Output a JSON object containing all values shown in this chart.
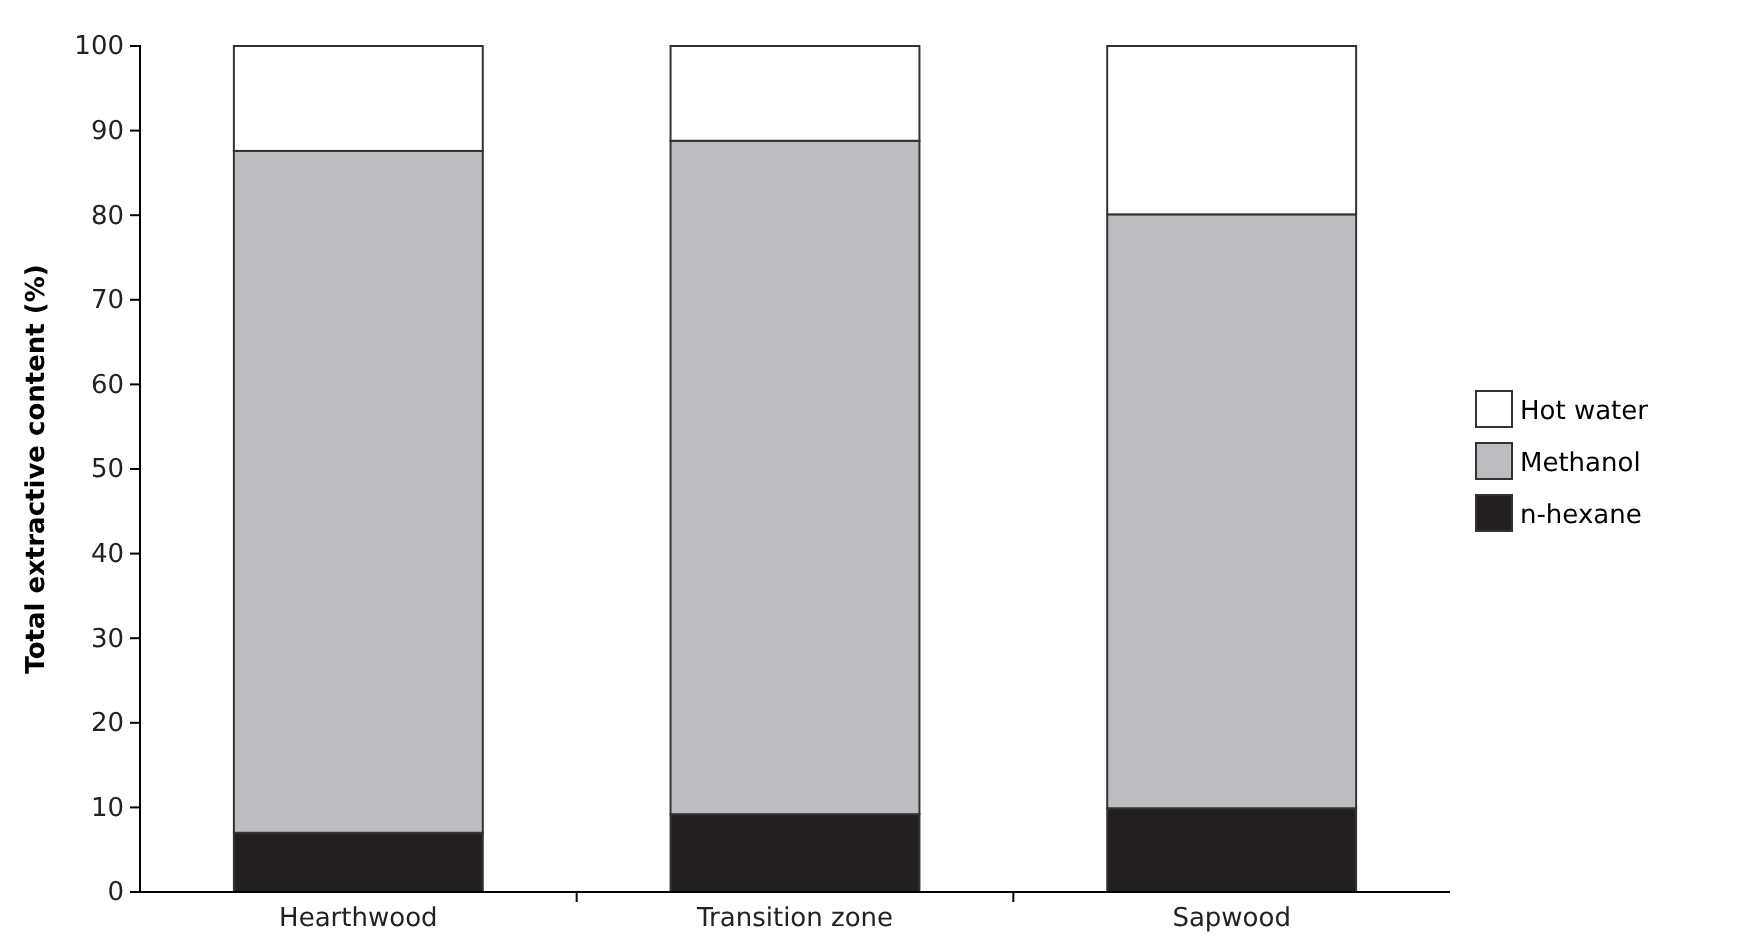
{
  "chart_data": {
    "type": "bar",
    "stacked": true,
    "ylabel": "Total extractive content (%)",
    "categories": [
      "Hearthwood",
      "Transition zone",
      "Sapwood"
    ],
    "series": [
      {
        "name": "n-hexane",
        "color": "#231f20",
        "values": [
          7.0,
          9.2,
          9.9
        ]
      },
      {
        "name": "Methanol",
        "color": "#bcbdc0",
        "values": [
          80.6,
          79.6,
          70.2
        ]
      },
      {
        "name": "Hot water",
        "color": "#ffffff",
        "values": [
          12.4,
          11.2,
          19.9
        ]
      }
    ],
    "ylim": [
      0,
      100
    ],
    "yticks": [
      0,
      10,
      20,
      30,
      40,
      50,
      60,
      70,
      80,
      90,
      100
    ],
    "grid": false,
    "legend": "right"
  }
}
